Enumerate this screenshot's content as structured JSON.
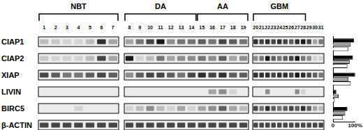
{
  "gel": {
    "groups": [
      {
        "label": "NBT",
        "from": 1,
        "to": 7
      },
      {
        "label": "DA",
        "from": 8,
        "to": 14
      },
      {
        "label": "AA",
        "from": 15,
        "to": 19
      },
      {
        "label": "GBM",
        "from": 20,
        "to": 28
      }
    ],
    "panels": [
      [
        1,
        7
      ],
      [
        8,
        19
      ],
      [
        20,
        31
      ]
    ],
    "lanes": [
      1,
      2,
      3,
      4,
      5,
      6,
      7,
      8,
      9,
      10,
      11,
      12,
      13,
      14,
      15,
      16,
      17,
      18,
      19,
      20,
      21,
      22,
      23,
      24,
      25,
      26,
      27,
      28,
      29,
      30,
      31
    ],
    "rows": [
      {
        "label": "CIAP1",
        "bands": [
          0.2,
          0.15,
          0.1,
          0.1,
          0.2,
          0.8,
          0.3,
          0.3,
          0.5,
          0.7,
          0.9,
          0.4,
          0.5,
          0.5,
          0.6,
          0.5,
          0.7,
          0.6,
          0.5,
          0.8,
          0.7,
          0.8,
          0.7,
          0.8,
          0.7,
          0.6,
          0.8,
          0.9,
          0.7,
          0.3,
          0.5
        ]
      },
      {
        "label": "CIAP2",
        "bands": [
          0.15,
          0.1,
          0.1,
          0.1,
          0.2,
          0.7,
          0.3,
          0.9,
          0.1,
          0.2,
          0.5,
          0.3,
          0.4,
          0.4,
          0.5,
          0.4,
          0.6,
          0.3,
          0.4,
          0.4,
          0.5,
          0.9,
          0.6,
          0.5,
          0.6,
          0.7,
          0.9,
          0.5,
          0.4,
          0.1,
          0.1
        ]
      },
      {
        "label": "XIAP",
        "bands": [
          0.7,
          0.6,
          0.5,
          0.5,
          0.6,
          0.7,
          0.6,
          0.4,
          0.6,
          0.7,
          0.7,
          0.6,
          0.5,
          0.7,
          0.8,
          0.7,
          0.8,
          0.6,
          0.6,
          0.8,
          0.8,
          0.8,
          0.7,
          0.8,
          0.8,
          0.7,
          0.9,
          0.8,
          0.7,
          0.6,
          0.5
        ]
      },
      {
        "label": "LIVIN",
        "bands": [
          0,
          0,
          0,
          0,
          0,
          0,
          0,
          0,
          0,
          0,
          0,
          0,
          0,
          0,
          0,
          0.3,
          0.4,
          0.1,
          0,
          0,
          0,
          0.4,
          0,
          0,
          0,
          0,
          0.4,
          0.1,
          0,
          0,
          0
        ]
      },
      {
        "label": "BIRC5",
        "bands": [
          0,
          0,
          0,
          0.1,
          0,
          0,
          0,
          0.1,
          0.2,
          0.4,
          0.2,
          0.1,
          0.3,
          0.1,
          0.3,
          0.4,
          0.6,
          0.3,
          0.2,
          0.7,
          0.5,
          0.8,
          0.6,
          0.5,
          0.6,
          0.7,
          0.6,
          0.8,
          0.6,
          0.3,
          0.2
        ]
      },
      {
        "label": "β-ACTIN",
        "bands": [
          0.7,
          0.7,
          0.7,
          0.7,
          0.7,
          0.7,
          0.7,
          0.7,
          0.7,
          0.7,
          0.7,
          0.7,
          0.7,
          0.7,
          0.7,
          0.7,
          0.7,
          0.7,
          0.7,
          0.7,
          0.7,
          0.7,
          0.7,
          0.7,
          0.7,
          0.7,
          0.7,
          0.7,
          0.7,
          0.7,
          0.7
        ]
      }
    ]
  },
  "chart_data": {
    "type": "bar",
    "orientation": "horizontal",
    "categories": [
      "CIAP1",
      "CIAP2",
      "XIAP",
      "LIVIN",
      "BIRC5"
    ],
    "series": [
      {
        "color": "#000000",
        "values": [
          95,
          90,
          100,
          15,
          65
        ]
      },
      {
        "color": "#a0a0a0",
        "values": [
          80,
          75,
          70,
          25,
          55
        ]
      },
      {
        "color": "#ffffff",
        "values": [
          70,
          65,
          80,
          8,
          45
        ]
      }
    ],
    "xlim": [
      0,
      100
    ],
    "xticks": [
      0,
      {
        "value": 100,
        "label": "100%"
      }
    ],
    "grid": false,
    "tick_labels": "x"
  }
}
